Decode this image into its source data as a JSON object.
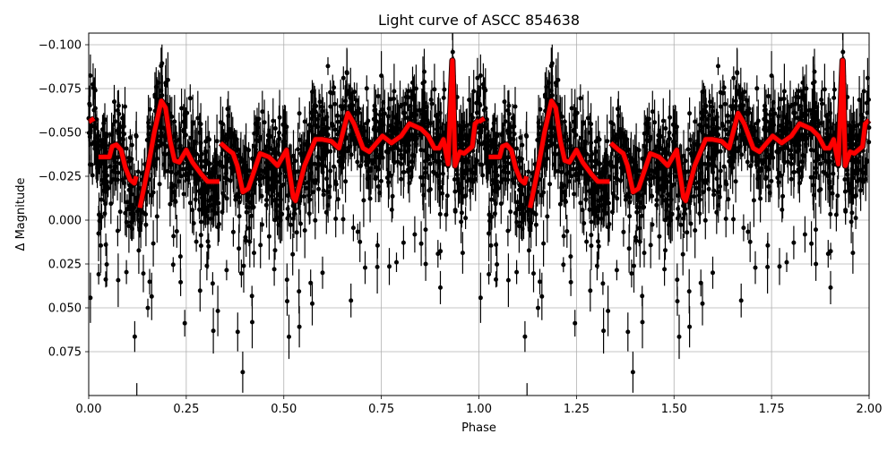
{
  "chart_data": {
    "type": "scatter",
    "title": "Light curve of ASCC 854638",
    "xlabel": "Phase",
    "ylabel": "Δ Magnitude",
    "xlim": [
      0.0,
      2.0
    ],
    "ylim": [
      0.1,
      -0.105
    ],
    "y_inverted": true,
    "grid": true,
    "legend": null,
    "xticks": [
      "0.00",
      "0.25",
      "0.50",
      "0.75",
      "1.00",
      "1.25",
      "1.50",
      "1.75",
      "2.00"
    ],
    "xtick_values": [
      0.0,
      0.25,
      0.5,
      0.75,
      1.0,
      1.25,
      1.5,
      1.75,
      2.0
    ],
    "yticks": [
      "−0.100",
      "−0.075",
      "−0.050",
      "−0.025",
      "0.000",
      "0.025",
      "0.050",
      "0.075"
    ],
    "ytick_values": [
      -0.1,
      -0.075,
      -0.05,
      -0.025,
      0.0,
      0.025,
      0.05,
      0.075
    ],
    "series": [
      {
        "name": "observations",
        "style": "black points with error bars",
        "color": "#000000",
        "description": "Dense cloud of thousands of photometric points, phase-folded and repeated over two cycles; scatter spans roughly -0.105 to +0.10 mag, concentrated between -0.07 and -0.01 mag, with deep faint tails near phases 0.13, 0.52, 0.90 (and 1.13, 1.52, 1.90)."
      },
      {
        "name": "binned model",
        "style": "thick red line with dark outline",
        "color": "#ff0000",
        "segments": [
          {
            "phase": [
              0.0,
              0.014
            ],
            "mag": [
              -0.056,
              -0.058
            ]
          },
          {
            "phase": [
              0.025,
              0.053,
              0.06,
              0.071,
              0.083,
              0.094,
              0.106,
              0.117,
              0.122
            ],
            "mag": [
              -0.036,
              -0.036,
              -0.042,
              -0.043,
              -0.04,
              -0.03,
              -0.023,
              -0.021,
              -0.025
            ]
          },
          {
            "phase": [
              0.131,
              0.152,
              0.168,
              0.186,
              0.197,
              0.209,
              0.22,
              0.232,
              0.25,
              0.266,
              0.289,
              0.305,
              0.335
            ],
            "mag": [
              -0.007,
              -0.03,
              -0.05,
              -0.068,
              -0.064,
              -0.045,
              -0.034,
              -0.033,
              -0.04,
              -0.033,
              -0.026,
              -0.022,
              -0.022
            ]
          },
          {
            "phase": [
              0.338,
              0.358,
              0.37,
              0.381,
              0.395,
              0.409,
              0.439,
              0.462,
              0.484,
              0.507,
              0.524,
              0.53,
              0.553,
              0.581,
              0.599,
              0.622,
              0.641,
              0.664,
              0.68,
              0.703,
              0.719,
              0.753,
              0.776,
              0.801,
              0.822,
              0.852,
              0.87,
              0.886,
              0.898,
              0.909,
              0.921,
              0.932,
              0.939,
              0.951,
              0.962,
              0.983,
              0.99,
              1.0
            ],
            "mag": [
              -0.044,
              -0.04,
              -0.038,
              -0.031,
              -0.016,
              -0.018,
              -0.038,
              -0.036,
              -0.031,
              -0.04,
              -0.013,
              -0.011,
              -0.031,
              -0.046,
              -0.046,
              -0.045,
              -0.041,
              -0.061,
              -0.055,
              -0.041,
              -0.039,
              -0.048,
              -0.044,
              -0.048,
              -0.055,
              -0.052,
              -0.048,
              -0.041,
              -0.041,
              -0.046,
              -0.032,
              -0.091,
              -0.031,
              -0.039,
              -0.038,
              -0.042,
              -0.055,
              -0.057
            ]
          }
        ],
        "repeat_offset": 1.0
      }
    ]
  }
}
